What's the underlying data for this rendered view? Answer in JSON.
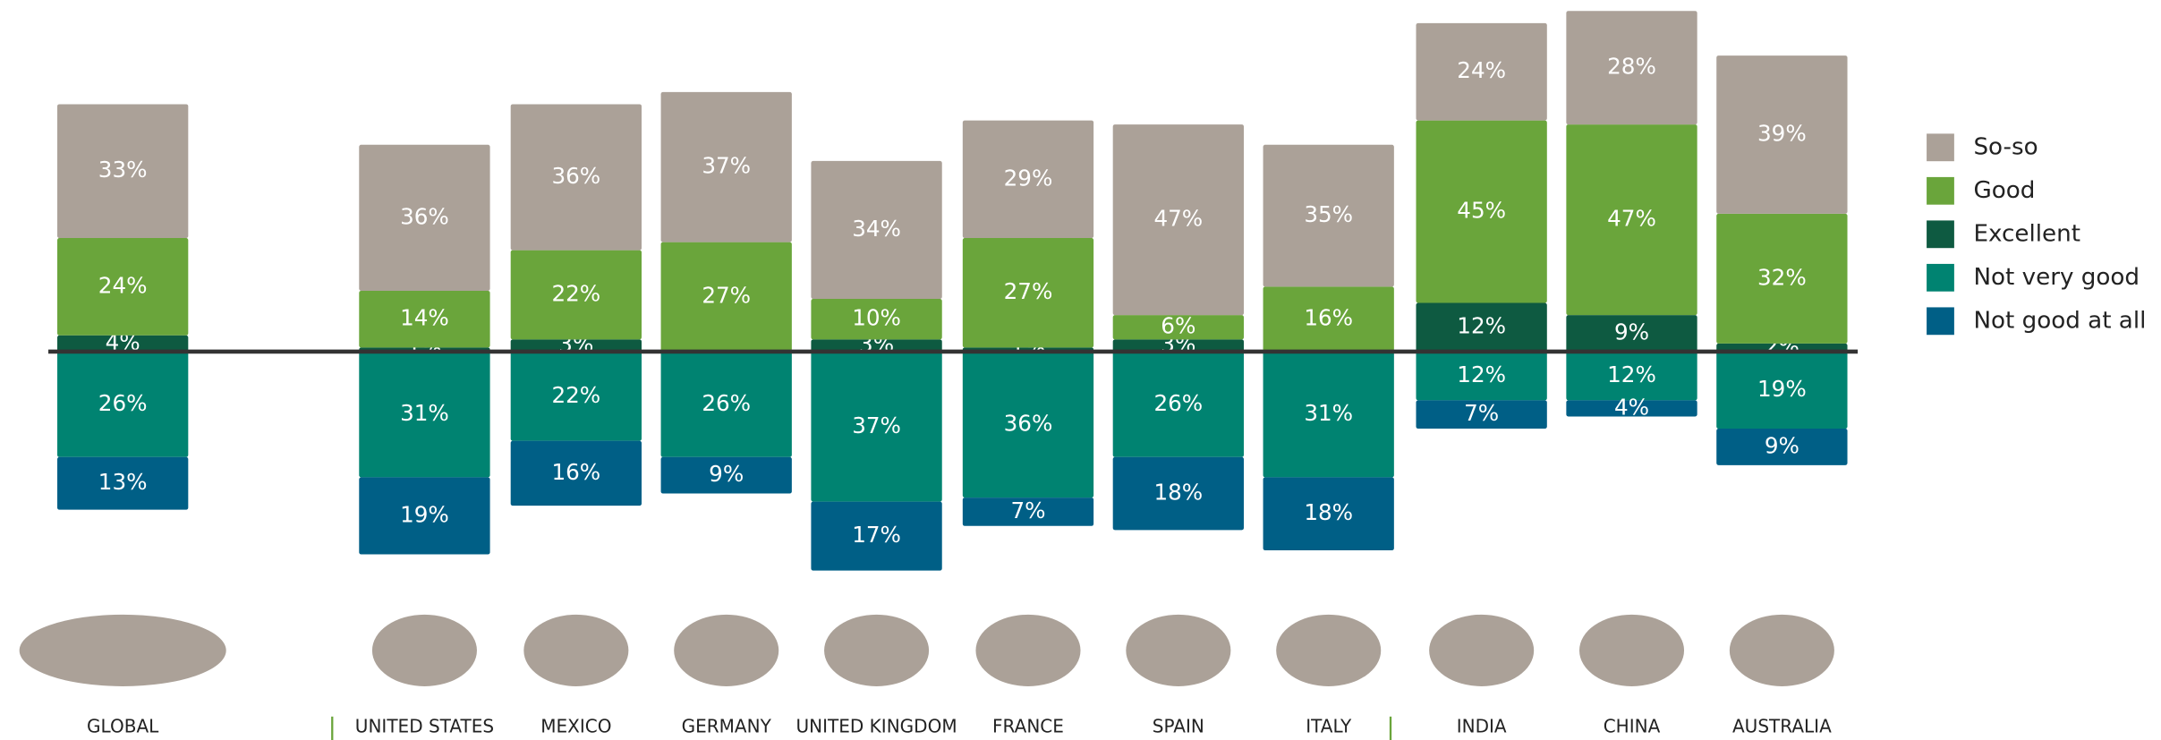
{
  "chart_data": {
    "type": "diverging-stacked-bar",
    "categories": [
      "GLOBAL",
      "UNITED STATES",
      "MEXICO",
      "GERMANY",
      "UNITED KINGDOM",
      "FRANCE",
      "SPAIN",
      "ITALY",
      "INDIA",
      "CHINA",
      "AUSTRALIA"
    ],
    "series": [
      {
        "name": "So-so",
        "color": "#aba198",
        "side": "above",
        "values": [
          33,
          36,
          36,
          37,
          34,
          29,
          47,
          35,
          24,
          28,
          39
        ],
        "value_labels": [
          "33%",
          "36%",
          "36%",
          "37%",
          "34%",
          "29%",
          "47%",
          "35%",
          "24%",
          "28%",
          "39%"
        ]
      },
      {
        "name": "Good",
        "color": "#6aa53b",
        "side": "above",
        "values": [
          24,
          14,
          22,
          27,
          10,
          27,
          6,
          16,
          45,
          47,
          32
        ],
        "value_labels": [
          "24%",
          "14%",
          "22%",
          "27%",
          "10%",
          "27%",
          "6%",
          "16%",
          "45%",
          "47%",
          "32%"
        ]
      },
      {
        "name": "Excellent",
        "color": "#0e5a41",
        "side": "above",
        "values": [
          4,
          1,
          3,
          0,
          3,
          1,
          3,
          0,
          12,
          9,
          2
        ],
        "value_labels": [
          "4%",
          "1%",
          "3%",
          "0%",
          "3%",
          "1%",
          "3%",
          "0%",
          "12%",
          "9%",
          "2%"
        ]
      },
      {
        "name": "Not very good",
        "color": "#008371",
        "side": "below",
        "values": [
          26,
          31,
          22,
          26,
          37,
          36,
          26,
          31,
          12,
          12,
          19
        ],
        "value_labels": [
          "26%",
          "31%",
          "22%",
          "26%",
          "37%",
          "36%",
          "26%",
          "31%",
          "12%",
          "12%",
          "19%"
        ]
      },
      {
        "name": "Not good at all",
        "color": "#005f86",
        "side": "below",
        "values": [
          13,
          19,
          16,
          9,
          17,
          7,
          18,
          18,
          7,
          4,
          9
        ],
        "value_labels": [
          "13%",
          "19%",
          "16%",
          "9%",
          "17%",
          "7%",
          "18%",
          "18%",
          "7%",
          "4%",
          "9%"
        ]
      }
    ],
    "ylim": [
      -55,
      85
    ],
    "legend": "right"
  }
}
